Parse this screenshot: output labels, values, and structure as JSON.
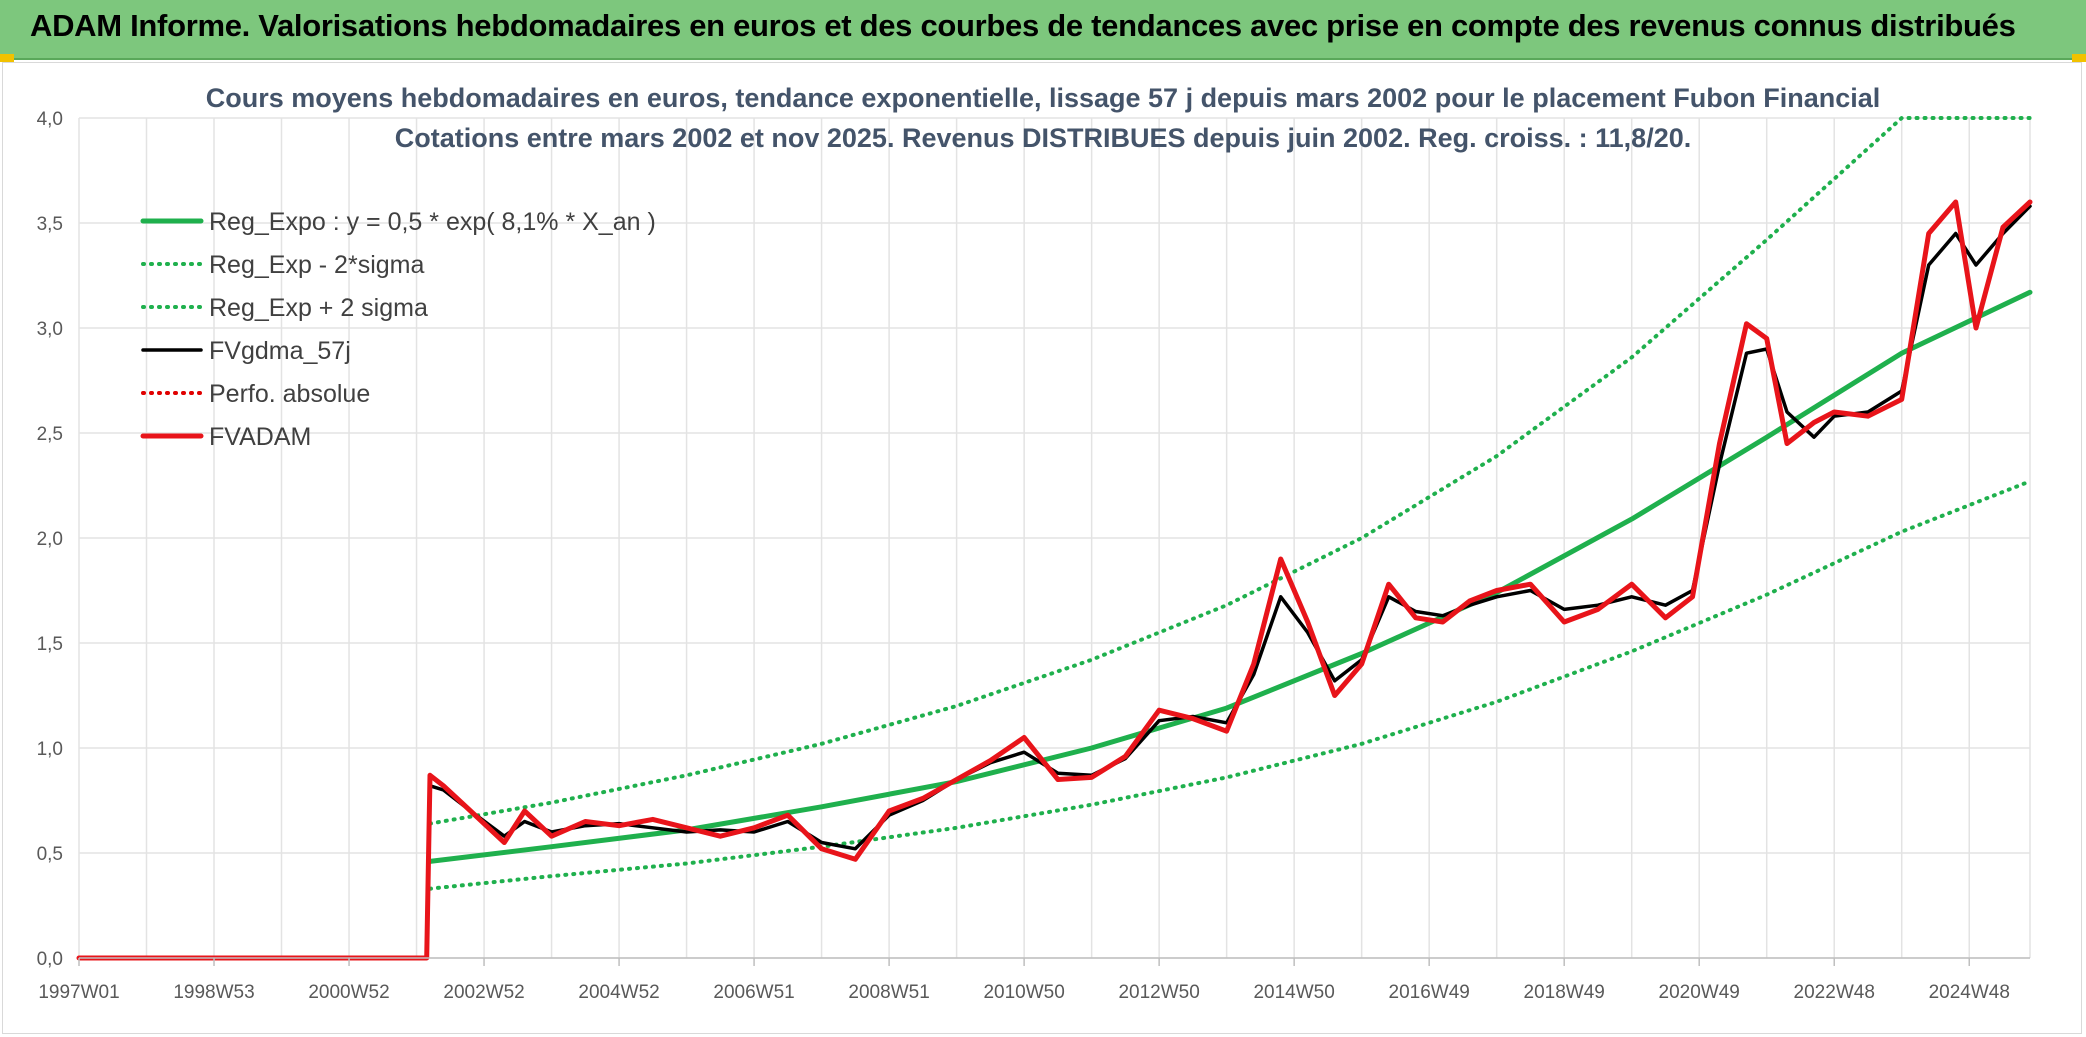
{
  "header": {
    "title": "ADAM Informe. Valorisations hebdomadaires en euros et des courbes de tendances avec prise en compte des revenus connus distribués"
  },
  "chart_data": {
    "type": "line",
    "title": "Cours moyens hebdomadaires en euros, tendance exponentielle, lissage 57 j depuis mars 2002 pour le placement Fubon Financial",
    "subtitle": "Cotations entre mars 2002 et nov 2025. Revenus DISTRIBUES depuis juin 2002. Reg. croiss. : 11,8/20.",
    "xlabel": "",
    "ylabel": "",
    "x_ticks": [
      "1997W01",
      "1998W53",
      "2000W52",
      "2002W52",
      "2004W52",
      "2006W51",
      "2008W51",
      "2010W50",
      "2012W50",
      "2014W50",
      "2016W49",
      "2018W49",
      "2020W49",
      "2022W48",
      "2024W48"
    ],
    "x_range_years": [
      1997.0,
      2025.9
    ],
    "ylim": [
      0,
      4
    ],
    "y_ticks": [
      "0,0",
      "0,5",
      "1,0",
      "1,5",
      "2,0",
      "2,5",
      "3,0",
      "3,5",
      "4,0"
    ],
    "grid": true,
    "legend_position": "top-left",
    "colors": {
      "trend": "#1fb04d",
      "band": "#1fb04d",
      "smooth": "#000000",
      "perfo": "#e00000",
      "price": "#e8141a"
    },
    "series": [
      {
        "name": "Reg_Expo : y = 0,5 * exp( 8,1% *  X_an )",
        "style": "solid-thick",
        "color": "#1fb04d",
        "x": [
          2002.2,
          2004,
          2006,
          2008,
          2010,
          2012,
          2014,
          2016,
          2018,
          2020,
          2022,
          2024,
          2025.9
        ],
        "y": [
          0.46,
          0.53,
          0.61,
          0.72,
          0.84,
          1.0,
          1.19,
          1.45,
          1.74,
          2.09,
          2.48,
          2.88,
          3.17
        ]
      },
      {
        "name": "Reg_Exp - 2*sigma",
        "style": "dotted",
        "color": "#1fb04d",
        "x": [
          2002.2,
          2004,
          2006,
          2008,
          2010,
          2012,
          2014,
          2016,
          2018,
          2020,
          2022,
          2024,
          2025.9
        ],
        "y": [
          0.33,
          0.39,
          0.45,
          0.53,
          0.62,
          0.73,
          0.86,
          1.02,
          1.22,
          1.46,
          1.73,
          2.03,
          2.27
        ]
      },
      {
        "name": "Reg_Exp + 2 sigma",
        "style": "dotted",
        "color": "#1fb04d",
        "x": [
          2002.2,
          2004,
          2006,
          2008,
          2010,
          2012,
          2014,
          2016,
          2018,
          2020,
          2022,
          2024,
          2025.9
        ],
        "y": [
          0.64,
          0.74,
          0.87,
          1.02,
          1.2,
          1.42,
          1.68,
          2.0,
          2.39,
          2.86,
          3.42,
          4.0,
          4.0
        ]
      },
      {
        "name": "FVgdma_57j",
        "style": "solid",
        "color": "#000000",
        "x": [
          2002.2,
          2002.4,
          2002.8,
          2003.3,
          2003.6,
          2004.0,
          2004.5,
          2005.0,
          2005.5,
          2006.0,
          2006.5,
          2007.0,
          2007.5,
          2008.0,
          2008.5,
          2009.0,
          2009.5,
          2010.0,
          2010.5,
          2011.0,
          2011.5,
          2012.0,
          2012.5,
          2013.0,
          2013.5,
          2014.0,
          2014.4,
          2014.8,
          2015.2,
          2015.6,
          2016.0,
          2016.4,
          2016.8,
          2017.2,
          2017.6,
          2018.0,
          2018.5,
          2019.0,
          2019.5,
          2020.0,
          2020.5,
          2020.9,
          2021.3,
          2021.7,
          2022.0,
          2022.3,
          2022.7,
          2023.0,
          2023.5,
          2024.0,
          2024.4,
          2024.8,
          2025.1,
          2025.5,
          2025.9
        ],
        "y": [
          0.82,
          0.8,
          0.7,
          0.58,
          0.65,
          0.6,
          0.63,
          0.64,
          0.62,
          0.6,
          0.61,
          0.6,
          0.65,
          0.55,
          0.52,
          0.68,
          0.75,
          0.85,
          0.93,
          0.98,
          0.88,
          0.87,
          0.95,
          1.13,
          1.15,
          1.12,
          1.35,
          1.72,
          1.55,
          1.32,
          1.42,
          1.72,
          1.65,
          1.63,
          1.68,
          1.72,
          1.75,
          1.66,
          1.68,
          1.72,
          1.68,
          1.75,
          2.35,
          2.88,
          2.9,
          2.6,
          2.48,
          2.58,
          2.6,
          2.7,
          3.3,
          3.45,
          3.3,
          3.45,
          3.58
        ]
      },
      {
        "name": "Perfo. absolue",
        "style": "dotted",
        "color": "#e00000",
        "x": [],
        "y": []
      },
      {
        "name": "FVADAM",
        "style": "solid-thick",
        "color": "#e8141a",
        "x": [
          1997.0,
          2002.15,
          2002.2,
          2002.4,
          2002.8,
          2003.3,
          2003.6,
          2004.0,
          2004.5,
          2005.0,
          2005.5,
          2006.0,
          2006.5,
          2007.0,
          2007.5,
          2008.0,
          2008.5,
          2009.0,
          2009.5,
          2010.0,
          2010.5,
          2011.0,
          2011.5,
          2012.0,
          2012.5,
          2013.0,
          2013.5,
          2014.0,
          2014.4,
          2014.8,
          2015.2,
          2015.6,
          2016.0,
          2016.4,
          2016.8,
          2017.2,
          2017.6,
          2018.0,
          2018.5,
          2019.0,
          2019.5,
          2020.0,
          2020.5,
          2020.9,
          2021.3,
          2021.7,
          2022.0,
          2022.3,
          2022.7,
          2023.0,
          2023.5,
          2024.0,
          2024.4,
          2024.8,
          2025.1,
          2025.5,
          2025.9
        ],
        "y": [
          0.0,
          0.0,
          0.87,
          0.82,
          0.7,
          0.55,
          0.7,
          0.58,
          0.65,
          0.63,
          0.66,
          0.62,
          0.58,
          0.62,
          0.68,
          0.52,
          0.47,
          0.7,
          0.76,
          0.85,
          0.94,
          1.05,
          0.85,
          0.86,
          0.96,
          1.18,
          1.14,
          1.08,
          1.4,
          1.9,
          1.6,
          1.25,
          1.4,
          1.78,
          1.62,
          1.6,
          1.7,
          1.75,
          1.78,
          1.6,
          1.66,
          1.78,
          1.62,
          1.72,
          2.45,
          3.02,
          2.95,
          2.45,
          2.55,
          2.6,
          2.58,
          2.66,
          3.45,
          3.6,
          3.0,
          3.48,
          3.6
        ]
      }
    ]
  }
}
